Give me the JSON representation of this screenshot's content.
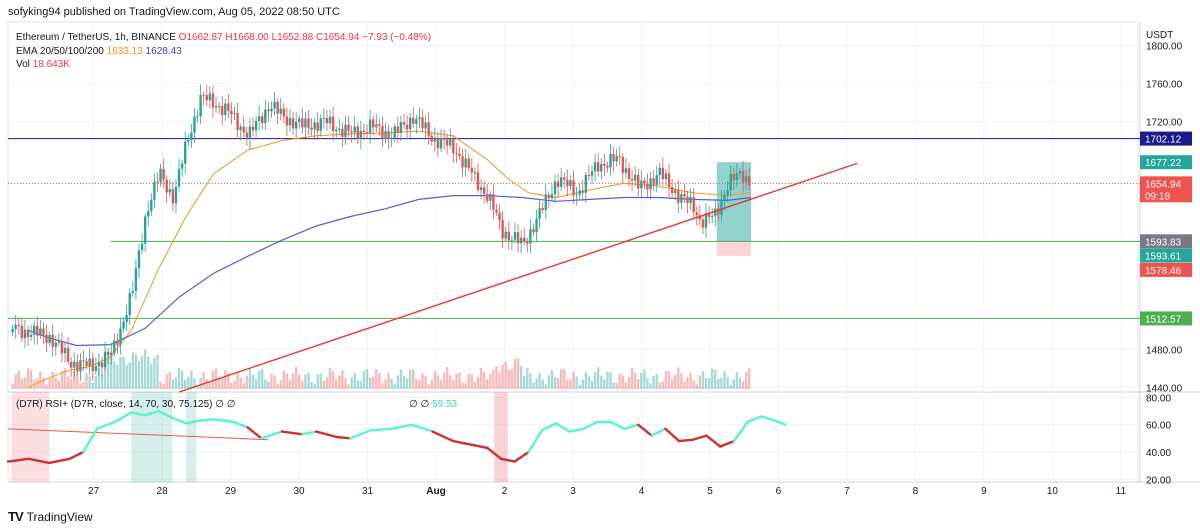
{
  "header": {
    "published": "sofyking94 published on TradingView.com, Aug 05, 2022 08:50 UTC"
  },
  "legend": {
    "title": "Ethereum / TetherUS, 1h, BINANCE",
    "ohlc": "O1662.87  H1668.00  L1652.88  C1654.94  −7.93 (−0.48%)",
    "ema_label": "EMA 20/50/100/200",
    "ema1": "1633.13",
    "ema2": "1628.43",
    "vol_label": "Vol",
    "vol_value": "18.643K"
  },
  "rsi_legend": {
    "label": "(D7R) RSI+ (D7R, close, 14, 70, 30, 75.125)",
    "marks": "∅  ∅",
    "marks2": "∅  ∅",
    "value": "59.53"
  },
  "footer": {
    "brand": "TradingView"
  },
  "colors": {
    "bull": "#26a69a",
    "bear": "#ef5350",
    "ema_fast": "#f7931a",
    "ema_slow": "#5b5bd6",
    "hline_top": "#1a1a8c",
    "hline_green": "#4caf50",
    "trend": "#e53935",
    "rsi_bull": "#57f5d0",
    "rsi_bear": "#d32f2f"
  },
  "chart_data": {
    "type": "candlestick",
    "symbol": "Ethereum / TetherUS",
    "interval": "1h",
    "price_axis_label": "USDT",
    "price_ticks": [
      1800,
      1760,
      1720,
      1480,
      1440
    ],
    "price_range": [
      1435,
      1825
    ],
    "time_labels": [
      "27",
      "28",
      "29",
      "30",
      "31",
      "Aug",
      "2",
      "3",
      "4",
      "5",
      "6",
      "7",
      "8",
      "9",
      "10",
      "11"
    ],
    "price_path": [
      [
        26.3,
        1498
      ],
      [
        26.6,
        1493
      ],
      [
        26.9,
        1466
      ],
      [
        27.2,
        1462
      ],
      [
        27.5,
        1475
      ],
      [
        27.8,
        1540
      ],
      [
        28.0,
        1625
      ],
      [
        28.2,
        1665
      ],
      [
        28.4,
        1640
      ],
      [
        28.6,
        1700
      ],
      [
        28.8,
        1745
      ],
      [
        29.0,
        1740
      ],
      [
        29.2,
        1730
      ],
      [
        29.5,
        1705
      ],
      [
        29.8,
        1738
      ],
      [
        30.0,
        1725
      ],
      [
        30.3,
        1715
      ],
      [
        30.6,
        1720
      ],
      [
        31.0,
        1707
      ],
      [
        31.3,
        1715
      ],
      [
        31.6,
        1705
      ],
      [
        31.9,
        1725
      ],
      [
        32.2,
        1702
      ],
      [
        32.5,
        1692
      ],
      [
        32.8,
        1660
      ],
      [
        33.0,
        1640
      ],
      [
        33.2,
        1605
      ],
      [
        33.5,
        1590
      ],
      [
        33.8,
        1630
      ],
      [
        34.0,
        1660
      ],
      [
        34.3,
        1645
      ],
      [
        34.6,
        1675
      ],
      [
        34.9,
        1680
      ],
      [
        35.2,
        1650
      ],
      [
        35.5,
        1665
      ],
      [
        35.8,
        1640
      ],
      [
        36.0,
        1630
      ],
      [
        36.1,
        1615
      ],
      [
        36.3,
        1620
      ],
      [
        36.5,
        1655
      ],
      [
        36.7,
        1665
      ],
      [
        36.85,
        1655
      ]
    ],
    "ema_fast": [
      [
        26.3,
        1440
      ],
      [
        26.6,
        1450
      ],
      [
        26.9,
        1458
      ],
      [
        27.2,
        1462
      ],
      [
        27.5,
        1472
      ],
      [
        27.8,
        1500
      ],
      [
        28.2,
        1565
      ],
      [
        28.6,
        1620
      ],
      [
        29.0,
        1665
      ],
      [
        29.5,
        1690
      ],
      [
        30.0,
        1700
      ],
      [
        30.5,
        1705
      ],
      [
        31.0,
        1707
      ],
      [
        31.5,
        1708
      ],
      [
        32.0,
        1710
      ],
      [
        32.5,
        1705
      ],
      [
        33.0,
        1680
      ],
      [
        33.3,
        1660
      ],
      [
        33.6,
        1645
      ],
      [
        34.0,
        1640
      ],
      [
        34.5,
        1648
      ],
      [
        35.0,
        1655
      ],
      [
        35.5,
        1652
      ],
      [
        36.0,
        1645
      ],
      [
        36.5,
        1642
      ],
      [
        36.85,
        1645
      ]
    ],
    "ema_slow": [
      [
        26.3,
        1500
      ],
      [
        26.6,
        1492
      ],
      [
        27.0,
        1484
      ],
      [
        27.5,
        1485
      ],
      [
        28.0,
        1502
      ],
      [
        28.5,
        1535
      ],
      [
        29.0,
        1560
      ],
      [
        29.5,
        1578
      ],
      [
        30.0,
        1595
      ],
      [
        30.5,
        1610
      ],
      [
        31.0,
        1620
      ],
      [
        31.5,
        1628
      ],
      [
        32.0,
        1638
      ],
      [
        32.5,
        1642
      ],
      [
        33.0,
        1642
      ],
      [
        33.5,
        1640
      ],
      [
        34.0,
        1636
      ],
      [
        34.5,
        1638
      ],
      [
        35.0,
        1640
      ],
      [
        35.5,
        1640
      ],
      [
        36.0,
        1638
      ],
      [
        36.5,
        1637
      ],
      [
        36.85,
        1640
      ]
    ],
    "horizontal_levels": [
      {
        "price": 1702.12,
        "label": "1702.12",
        "color": "#1a1a8c",
        "from_x": 26.0
      },
      {
        "price": 1593.83,
        "label": "1593.83",
        "color": "#4caf50",
        "from_x": 27.5
      },
      {
        "price": 1512.57,
        "label": "1512.57",
        "color": "#4caf50",
        "from_x": 26.0
      }
    ],
    "price_tags": [
      {
        "price": 1677.22,
        "label": "1677.22",
        "bg": "#26a69a"
      },
      {
        "price": 1654.94,
        "label": "1654.94",
        "bg": "#ef5350",
        "sub": "09:18"
      },
      {
        "price": 1593.61,
        "label": "1593.61",
        "bg": "#26a69a"
      },
      {
        "price": 1578.46,
        "label": "1578.46",
        "bg": "#ef5350"
      }
    ],
    "trendline": [
      [
        28.5,
        1435
      ],
      [
        38.4,
        1676
      ]
    ],
    "position_box": {
      "x0": 36.35,
      "x1": 36.85,
      "entry": 1593.61,
      "target": 1677.22,
      "stop": 1578.46
    },
    "current_price": 1654.94,
    "rsi": {
      "ticks": [
        80.0,
        60.0,
        40.0,
        20.0
      ],
      "range": [
        18,
        84
      ],
      "path": [
        [
          26.0,
          33
        ],
        [
          26.3,
          35
        ],
        [
          26.6,
          32
        ],
        [
          26.9,
          35
        ],
        [
          27.1,
          40
        ],
        [
          27.3,
          57
        ],
        [
          27.6,
          63
        ],
        [
          27.8,
          69
        ],
        [
          28.0,
          67
        ],
        [
          28.2,
          70
        ],
        [
          28.4,
          65
        ],
        [
          28.6,
          61
        ],
        [
          28.8,
          63
        ],
        [
          29.0,
          64
        ],
        [
          29.3,
          62
        ],
        [
          29.5,
          58
        ],
        [
          29.7,
          50
        ],
        [
          30.0,
          55
        ],
        [
          30.3,
          53
        ],
        [
          30.5,
          55
        ],
        [
          30.8,
          51
        ],
        [
          31.0,
          50
        ],
        [
          31.3,
          56
        ],
        [
          31.6,
          57
        ],
        [
          31.9,
          60
        ],
        [
          32.2,
          55
        ],
        [
          32.5,
          48
        ],
        [
          32.8,
          45
        ],
        [
          33.0,
          43
        ],
        [
          33.2,
          35
        ],
        [
          33.4,
          33
        ],
        [
          33.6,
          40
        ],
        [
          33.8,
          56
        ],
        [
          34.0,
          61
        ],
        [
          34.2,
          55
        ],
        [
          34.4,
          57
        ],
        [
          34.6,
          62
        ],
        [
          34.8,
          62
        ],
        [
          35.0,
          57
        ],
        [
          35.2,
          60
        ],
        [
          35.4,
          52
        ],
        [
          35.6,
          57
        ],
        [
          35.8,
          48
        ],
        [
          36.0,
          49
        ],
        [
          36.2,
          52
        ],
        [
          36.4,
          44
        ],
        [
          36.6,
          48
        ],
        [
          36.8,
          62
        ],
        [
          37.0,
          66
        ],
        [
          37.2,
          63
        ],
        [
          37.35,
          60
        ]
      ]
    }
  }
}
